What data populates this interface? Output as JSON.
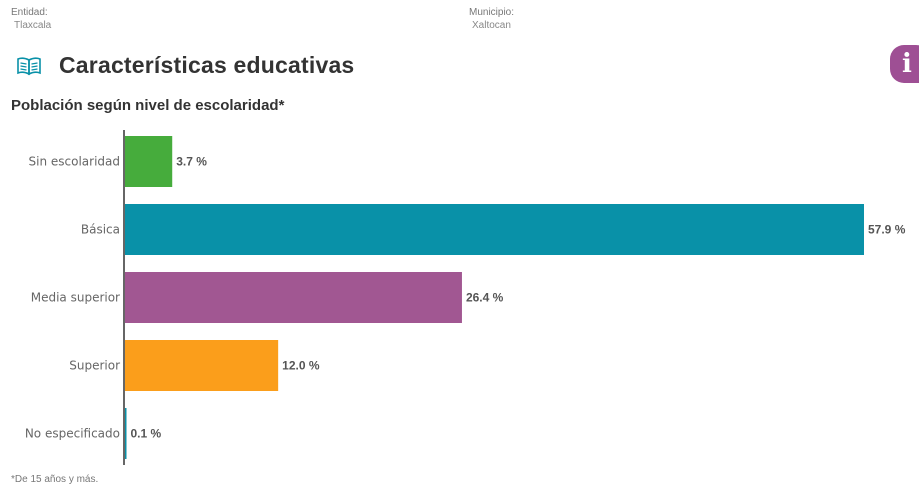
{
  "header": {
    "entidad_label": "Entidad:",
    "entidad_value": "Tlaxcala",
    "municipio_label": "Municipio:",
    "municipio_value": "Xaltocan"
  },
  "section": {
    "title": "Características educativas",
    "icon": "open-book-icon",
    "info_icon": "info-icon",
    "info_color": "#9e4f94"
  },
  "chart_data": {
    "type": "bar",
    "orientation": "horizontal",
    "title": "Población según nivel de escolaridad*",
    "categories": [
      "Sin escolaridad",
      "Básica",
      "Media superior",
      "Superior",
      "No especificado"
    ],
    "values": [
      3.7,
      57.9,
      26.4,
      12.0,
      0.1
    ],
    "value_labels": [
      "3.7 %",
      "57.9 %",
      "26.4 %",
      "12.0 %",
      "0.1 %"
    ],
    "colors": [
      "#46ac3c",
      "#0991a8",
      "#a15792",
      "#fb9e1b",
      "#0991a8"
    ],
    "xlim": [
      0,
      57.9
    ],
    "grid": false,
    "legend": "none"
  },
  "footnote": "*De 15 años y más."
}
